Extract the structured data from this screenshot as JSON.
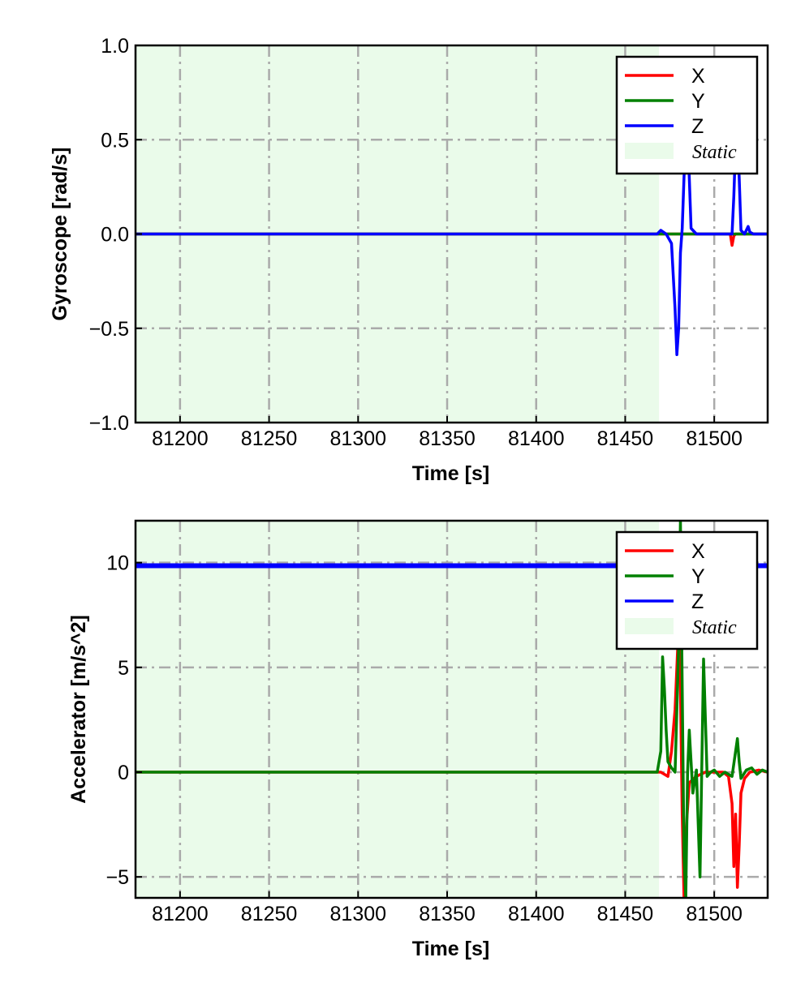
{
  "chart_data": [
    {
      "type": "line",
      "xlabel": "Time [s]",
      "ylabel": "Gyroscope [rad/s]",
      "xlim": [
        81175,
        81530
      ],
      "ylim": [
        -1.0,
        1.0
      ],
      "x_ticks": [
        81200,
        81250,
        81300,
        81350,
        81400,
        81450,
        81500
      ],
      "x_tick_labels": [
        "81200",
        "81250",
        "81300",
        "81350",
        "81400",
        "81450",
        "81500"
      ],
      "y_ticks": [
        -1.0,
        -0.5,
        0.0,
        0.5,
        1.0
      ],
      "y_tick_labels": [
        "−1.0",
        "−0.5",
        "0.0",
        "0.5",
        "1.0"
      ],
      "grid": true,
      "legend_position": "top-right",
      "static_region": {
        "label": "Static",
        "x": [
          81175,
          81469
        ],
        "color": "#eafbea"
      },
      "series": [
        {
          "name": "X",
          "color": "#ff0000",
          "points": [
            [
              81175,
              0
            ],
            [
              81469,
              0
            ],
            [
              81500,
              0
            ],
            [
              81509,
              0
            ],
            [
              81510,
              -0.06
            ],
            [
              81511,
              -0.01
            ],
            [
              81512,
              0
            ],
            [
              81530,
              0
            ]
          ]
        },
        {
          "name": "Y",
          "color": "#008000",
          "points": [
            [
              81175,
              0
            ],
            [
              81469,
              0
            ],
            [
              81530,
              0
            ]
          ]
        },
        {
          "name": "Z",
          "color": "#0000ff",
          "points": [
            [
              81175,
              0
            ],
            [
              81468,
              0
            ],
            [
              81470,
              0.02
            ],
            [
              81473,
              0
            ],
            [
              81476,
              -0.05
            ],
            [
              81478,
              -0.4
            ],
            [
              81479,
              -0.64
            ],
            [
              81480,
              -0.5
            ],
            [
              81481,
              -0.1
            ],
            [
              81482,
              0.03
            ],
            [
              81483,
              0.3
            ],
            [
              81484,
              0.5
            ],
            [
              81485,
              0.55
            ],
            [
              81486,
              0.3
            ],
            [
              81487,
              0.03
            ],
            [
              81490,
              0
            ],
            [
              81510,
              0
            ],
            [
              81511,
              0.2
            ],
            [
              81512,
              0.48
            ],
            [
              81513,
              0.55
            ],
            [
              81514,
              0.3
            ],
            [
              81515,
              0.02
            ],
            [
              81517,
              0
            ],
            [
              81519,
              0.04
            ],
            [
              81520,
              0.01
            ],
            [
              81522,
              0
            ],
            [
              81530,
              0
            ]
          ]
        }
      ]
    },
    {
      "type": "line",
      "xlabel": "Time [s]",
      "ylabel": "Accelerator [m/s^2]",
      "xlim": [
        81175,
        81530
      ],
      "ylim": [
        -6,
        12
      ],
      "x_ticks": [
        81200,
        81250,
        81300,
        81350,
        81400,
        81450,
        81500
      ],
      "x_tick_labels": [
        "81200",
        "81250",
        "81300",
        "81350",
        "81400",
        "81450",
        "81500"
      ],
      "y_ticks": [
        -5,
        0,
        5,
        10
      ],
      "y_tick_labels": [
        "−5",
        "0",
        "5",
        "10"
      ],
      "grid": true,
      "legend_position": "top-right",
      "static_region": {
        "label": "Static",
        "x": [
          81175,
          81469
        ],
        "color": "#eafbea"
      },
      "series": [
        {
          "name": "X",
          "color": "#ff0000",
          "points": [
            [
              81175,
              0
            ],
            [
              81470,
              0
            ],
            [
              81474,
              -0.2
            ],
            [
              81476,
              1
            ],
            [
              81478,
              3
            ],
            [
              81480,
              7
            ],
            [
              81481,
              4
            ],
            [
              81482,
              -2
            ],
            [
              81483,
              -6
            ],
            [
              81484,
              -3
            ],
            [
              81486,
              -0.5
            ],
            [
              81490,
              -0.2
            ],
            [
              81495,
              0
            ],
            [
              81505,
              0
            ],
            [
              81508,
              -0.2
            ],
            [
              81510,
              -1.5
            ],
            [
              81511,
              -4.5
            ],
            [
              81512,
              -2
            ],
            [
              81513,
              -5.5
            ],
            [
              81514,
              -3.5
            ],
            [
              81515,
              -1
            ],
            [
              81517,
              -0.3
            ],
            [
              81520,
              0
            ],
            [
              81525,
              0.1
            ],
            [
              81530,
              0
            ]
          ]
        },
        {
          "name": "Y",
          "color": "#008000",
          "points": [
            [
              81175,
              0
            ],
            [
              81468,
              0
            ],
            [
              81470,
              1
            ],
            [
              81471,
              5.5
            ],
            [
              81472,
              4
            ],
            [
              81473,
              2
            ],
            [
              81474,
              0.5
            ],
            [
              81476,
              0.2
            ],
            [
              81478,
              0
            ],
            [
              81479,
              3
            ],
            [
              81480,
              6
            ],
            [
              81481,
              12
            ],
            [
              81482,
              4
            ],
            [
              81483,
              -4
            ],
            [
              81484,
              -6
            ],
            [
              81485,
              0
            ],
            [
              81486,
              2
            ],
            [
              81487,
              0.5
            ],
            [
              81488,
              -1
            ],
            [
              81490,
              0.1
            ],
            [
              81492,
              -5
            ],
            [
              81494,
              5.4
            ],
            [
              81496,
              -0.2
            ],
            [
              81498,
              0
            ],
            [
              81500,
              0.1
            ],
            [
              81503,
              -0.2
            ],
            [
              81506,
              0
            ],
            [
              81510,
              -0.2
            ],
            [
              81512,
              1
            ],
            [
              81513,
              1.6
            ],
            [
              81514,
              0.5
            ],
            [
              81515,
              -0.3
            ],
            [
              81518,
              0.1
            ],
            [
              81521,
              0.2
            ],
            [
              81524,
              -0.1
            ],
            [
              81527,
              0.1
            ],
            [
              81530,
              0
            ]
          ]
        },
        {
          "name": "Z",
          "color": "#0000ff",
          "points": [
            [
              81175,
              9.85
            ],
            [
              81530,
              9.85
            ]
          ]
        }
      ]
    }
  ]
}
